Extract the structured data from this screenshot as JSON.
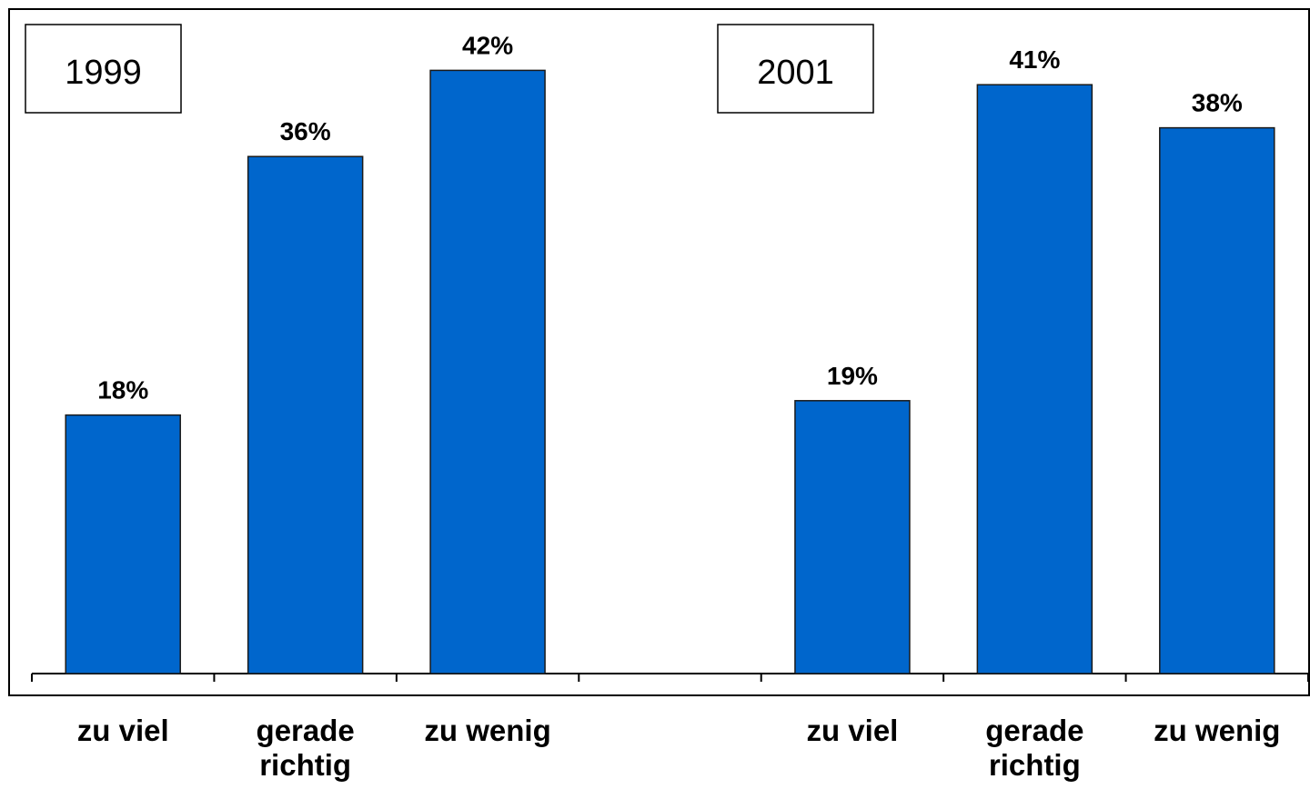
{
  "chart_data": {
    "type": "bar",
    "annotations": [
      "1999",
      "2001"
    ],
    "categories": [
      "zu viel",
      "gerade richtig",
      "zu wenig",
      null,
      "zu viel",
      "gerade richtig",
      "zu wenig"
    ],
    "values": [
      18,
      36,
      42,
      null,
      19,
      41,
      38
    ],
    "value_labels": [
      "18%",
      "36%",
      "42%",
      null,
      "19%",
      "41%",
      "38%"
    ],
    "color": "#0066cc"
  }
}
